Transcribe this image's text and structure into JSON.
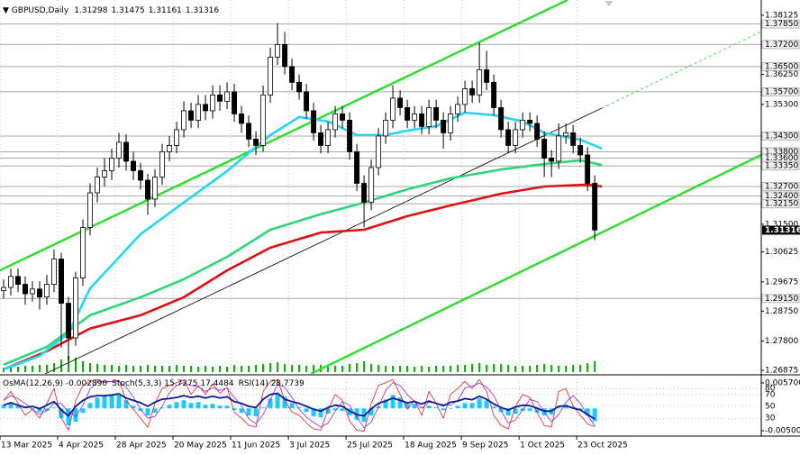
{
  "chart_data": [
    {
      "type": "candlestick",
      "title": "GBPUSD,Daily",
      "header_values": [
        1.31298,
        1.31475,
        1.31161,
        1.31316
      ],
      "up_color": "#ffffff",
      "down_color": "#000000",
      "wick_color": "#000000",
      "open": [
        1.294,
        1.295,
        1.2985,
        1.296,
        1.293,
        1.2945,
        1.292,
        1.296,
        1.304,
        1.29,
        1.279,
        1.298,
        1.314,
        1.325,
        1.33,
        1.332,
        1.336,
        1.341,
        1.335,
        1.332,
        1.329,
        1.323,
        1.33,
        1.338,
        1.34,
        1.345,
        1.351,
        1.348,
        1.353,
        1.351,
        1.356,
        1.354,
        1.357,
        1.35,
        1.347,
        1.342,
        1.34,
        1.356,
        1.368,
        1.372,
        1.365,
        1.36,
        1.357,
        1.351,
        1.344,
        1.34,
        1.345,
        1.35,
        1.348,
        1.338,
        1.328,
        1.322,
        1.333,
        1.343,
        1.348,
        1.355,
        1.352,
        1.348,
        1.35,
        1.346,
        1.352,
        1.348,
        1.344,
        1.35,
        1.353,
        1.358,
        1.356,
        1.364,
        1.36,
        1.352,
        1.345,
        1.34,
        1.345,
        1.348,
        1.347,
        1.342,
        1.336,
        1.335,
        1.343,
        1.344,
        1.34,
        1.337,
        1.328
      ],
      "high": [
        1.2975,
        1.301,
        1.301,
        1.2985,
        1.297,
        1.297,
        1.299,
        1.307,
        1.306,
        1.292,
        1.3,
        1.3165,
        1.328,
        1.333,
        1.336,
        1.339,
        1.344,
        1.3435,
        1.338,
        1.3345,
        1.331,
        1.3325,
        1.3405,
        1.343,
        1.3475,
        1.354,
        1.3535,
        1.356,
        1.356,
        1.359,
        1.359,
        1.36,
        1.3595,
        1.3525,
        1.3495,
        1.3445,
        1.359,
        1.371,
        1.3788,
        1.376,
        1.3675,
        1.3625,
        1.3595,
        1.3535,
        1.3465,
        1.3475,
        1.3525,
        1.3525,
        1.3505,
        1.3405,
        1.3305,
        1.3355,
        1.3455,
        1.3505,
        1.359,
        1.3575,
        1.3545,
        1.3525,
        1.3525,
        1.3545,
        1.3545,
        1.3505,
        1.3525,
        1.3555,
        1.3605,
        1.3605,
        1.3726,
        1.37,
        1.3625,
        1.3545,
        1.3475,
        1.3475,
        1.3505,
        1.3505,
        1.3495,
        1.3445,
        1.3385,
        1.347,
        1.347,
        1.3465,
        1.3425,
        1.3395,
        1.3305
      ],
      "low": [
        1.2915,
        1.2925,
        1.2935,
        1.2895,
        1.2905,
        1.288,
        1.2895,
        1.2935,
        1.276,
        1.272,
        1.2765,
        1.2955,
        1.3115,
        1.322,
        1.327,
        1.329,
        1.333,
        1.332,
        1.329,
        1.326,
        1.318,
        1.3205,
        1.3275,
        1.335,
        1.3375,
        1.3425,
        1.3455,
        1.3455,
        1.348,
        1.3485,
        1.351,
        1.3515,
        1.3475,
        1.344,
        1.3395,
        1.337,
        1.338,
        1.3535,
        1.3655,
        1.3625,
        1.3575,
        1.3545,
        1.3485,
        1.3415,
        1.3375,
        1.3375,
        1.3425,
        1.3455,
        1.3355,
        1.3255,
        1.314,
        1.3195,
        1.3305,
        1.3405,
        1.3455,
        1.3495,
        1.3455,
        1.3455,
        1.3435,
        1.3435,
        1.3455,
        1.339,
        1.3415,
        1.3475,
        1.3505,
        1.3535,
        1.3535,
        1.3575,
        1.3495,
        1.3425,
        1.3375,
        1.3375,
        1.3425,
        1.3445,
        1.3395,
        1.33,
        1.33,
        1.3325,
        1.3405,
        1.3375,
        1.3345,
        1.3255,
        1.31
      ],
      "close": [
        1.295,
        1.2985,
        1.296,
        1.293,
        1.2945,
        1.292,
        1.296,
        1.304,
        1.29,
        1.279,
        1.298,
        1.314,
        1.325,
        1.33,
        1.332,
        1.336,
        1.341,
        1.335,
        1.332,
        1.329,
        1.323,
        1.33,
        1.338,
        1.34,
        1.345,
        1.351,
        1.348,
        1.353,
        1.351,
        1.356,
        1.354,
        1.357,
        1.35,
        1.347,
        1.342,
        1.34,
        1.356,
        1.368,
        1.372,
        1.365,
        1.36,
        1.357,
        1.351,
        1.344,
        1.34,
        1.345,
        1.35,
        1.348,
        1.338,
        1.328,
        1.322,
        1.333,
        1.343,
        1.348,
        1.355,
        1.352,
        1.348,
        1.35,
        1.346,
        1.352,
        1.348,
        1.344,
        1.35,
        1.353,
        1.358,
        1.356,
        1.364,
        1.36,
        1.352,
        1.345,
        1.34,
        1.345,
        1.348,
        1.347,
        1.342,
        1.336,
        1.335,
        1.343,
        1.344,
        1.34,
        1.337,
        1.328,
        1.3132
      ],
      "xlim": [
        0,
        105.6
      ],
      "xticks": [
        {
          "value": 0,
          "label": "13 Mar 2025"
        },
        {
          "value": 8,
          "label": "4 Apr 2025"
        },
        {
          "value": 16,
          "label": "28 Apr 2025"
        },
        {
          "value": 24,
          "label": "20 May 2025"
        },
        {
          "value": 32,
          "label": "11 Jun 2025"
        },
        {
          "value": 40,
          "label": "3 Jul 2025"
        },
        {
          "value": 48,
          "label": "25 Jul 2025"
        },
        {
          "value": 56,
          "label": "18 Aug 2025"
        },
        {
          "value": 64,
          "label": "9 Sep 2025"
        },
        {
          "value": 72,
          "label": "1 Oct 2025"
        },
        {
          "value": 80,
          "label": "23 Oct 2025"
        }
      ],
      "grid": true,
      "ylim": [
        1.2676,
        1.3861
      ],
      "yticks": [
        1.38125,
        {
          "value": 1.3625,
          "label": "1.36250"
        },
        {
          "value": 1.353,
          "label": "1.35300"
        },
        {
          "value": 1.315,
          "label": "1.31500"
        },
        1.30625,
        1.29675,
        {
          "value": 1.2875,
          "label": "1.28750"
        },
        {
          "value": 1.278,
          "label": "1.27800"
        },
        1.26875
      ],
      "levels": [
        {
          "value": 1.3785,
          "label": "1.37850"
        },
        {
          "value": 1.372,
          "label": "1.37200"
        },
        {
          "value": 1.365,
          "label": "1.36500"
        },
        {
          "value": 1.357,
          "label": "1.35700"
        },
        {
          "value": 1.343,
          "label": "1.34300"
        },
        {
          "value": 1.338,
          "label": "1.33800"
        },
        {
          "value": 1.336,
          "label": "1.33600"
        },
        {
          "value": 1.3335,
          "label": "1.33350"
        },
        {
          "value": 1.327,
          "label": "1.32700"
        },
        {
          "value": 1.324,
          "label": "1.32400"
        },
        {
          "value": 1.3215,
          "label": "1.32150"
        },
        {
          "value": 1.2915,
          "label": "1.29150"
        }
      ],
      "level_color": "#a8a8a8",
      "last_price": 1.31316,
      "moving_averages": [
        {
          "color": "#e01010",
          "x": [
            0,
            6,
            12,
            19,
            25,
            31,
            37,
            44,
            50,
            56,
            62,
            69,
            75,
            81,
            83
          ],
          "values": [
            1.269,
            1.2748,
            1.282,
            1.2862,
            1.2919,
            1.3004,
            1.3076,
            1.3124,
            1.3133,
            1.3176,
            1.321,
            1.3247,
            1.327,
            1.3276,
            1.327
          ]
        },
        {
          "color": "#2ed67a",
          "x": [
            0,
            6,
            12,
            19,
            25,
            31,
            37,
            44,
            50,
            56,
            62,
            69,
            75,
            80,
            83
          ],
          "values": [
            1.2705,
            1.2762,
            1.2862,
            1.2919,
            1.2976,
            1.3047,
            1.3133,
            1.3182,
            1.3219,
            1.3261,
            1.3296,
            1.3324,
            1.3341,
            1.3353,
            1.3338
          ]
        },
        {
          "color": "#22d8f0",
          "x": [
            0,
            5,
            9,
            12,
            19,
            25,
            31,
            37,
            41,
            45,
            49,
            53,
            56,
            60,
            64,
            68,
            72,
            75,
            80,
            83
          ],
          "values": [
            1.269,
            1.2733,
            1.2805,
            1.2947,
            1.3119,
            1.3219,
            1.3319,
            1.3433,
            1.349,
            1.3476,
            1.3433,
            1.3433,
            1.3447,
            1.3461,
            1.3504,
            1.3496,
            1.3476,
            1.344,
            1.3418,
            1.339
          ]
        }
      ],
      "volume": {
        "color": "#00b000",
        "values": [
          5,
          6,
          6,
          7,
          7,
          8,
          8,
          10,
          14,
          18,
          16,
          12,
          10,
          9,
          8,
          8,
          7,
          8,
          7,
          7,
          8,
          7,
          7,
          7,
          8,
          7,
          7,
          6,
          7,
          6,
          7,
          6,
          8,
          7,
          7,
          8,
          9,
          10,
          11,
          9,
          8,
          8,
          7,
          8,
          8,
          7,
          7,
          7,
          9,
          10,
          12,
          9,
          8,
          7,
          7,
          7,
          7,
          6,
          7,
          6,
          7,
          7,
          7,
          8,
          8,
          9,
          10,
          8,
          9,
          9,
          8,
          7,
          7,
          7,
          8,
          9,
          8,
          7,
          7,
          8,
          8,
          10,
          12
        ]
      }
    },
    {
      "type": "oscillator",
      "legend": [
        "OsMA(12,26,9) -0.002890",
        "Stoch(5,3,3) 15.7275 17.4484",
        "RSI(14) 28.7739"
      ],
      "ylim": [
        0,
        100
      ],
      "yticks": [
        80,
        70,
        50,
        30
      ],
      "y2lim": [
        -0.0062,
        0.0071
      ],
      "y2ticks": [
        {
          "value": 0.0057,
          "label": "0.005700"
        },
        {
          "value": -0.005,
          "label": "-0.005000"
        }
      ],
      "series": [
        {
          "type": "bar",
          "axis": "y2",
          "color": "#1ec8ff",
          "values": [
            0.0008,
            0.001,
            0.0006,
            0.0002,
            -0.0002,
            -0.0008,
            -0.0006,
            0.0002,
            -0.0022,
            -0.0038,
            -0.003,
            -0.001,
            0.0012,
            0.0024,
            0.003,
            0.0032,
            0.003,
            0.0018,
            0.0006,
            -0.0006,
            -0.0016,
            -0.001,
            0.0002,
            0.0008,
            0.0014,
            0.0018,
            0.0012,
            0.0014,
            0.0008,
            0.001,
            0.0006,
            0.0006,
            -0.0004,
            -0.001,
            -0.0016,
            -0.0018,
            0.0002,
            0.0022,
            0.0034,
            0.0026,
            0.0012,
            0.0002,
            -0.0008,
            -0.0018,
            -0.002,
            -0.0012,
            -0.0004,
            -0.0006,
            -0.0016,
            -0.0026,
            -0.003,
            -0.0016,
            0.0004,
            0.002,
            0.003,
            0.0024,
            0.0014,
            0.001,
            0.0002,
            0.0006,
            0.0002,
            -0.0004,
            0.0,
            0.0006,
            0.0012,
            0.0012,
            0.0022,
            0.0018,
            0.0004,
            -0.0008,
            -0.0016,
            -0.0012,
            -0.0006,
            -0.0006,
            -0.001,
            -0.0016,
            -0.0014,
            0.0002,
            0.0008,
            0.0004,
            -0.0004,
            -0.0016,
            -0.00289
          ]
        },
        {
          "type": "line",
          "color": "#e02020",
          "width": 0.8,
          "values": [
            60,
            75,
            55,
            35,
            45,
            30,
            55,
            80,
            30,
            10,
            60,
            85,
            92,
            95,
            90,
            92,
            94,
            60,
            45,
            30,
            15,
            55,
            80,
            85,
            90,
            94,
            70,
            85,
            70,
            88,
            72,
            82,
            40,
            30,
            18,
            15,
            75,
            92,
            95,
            60,
            40,
            35,
            22,
            12,
            10,
            45,
            70,
            60,
            25,
            10,
            8,
            55,
            85,
            90,
            95,
            70,
            45,
            60,
            35,
            75,
            55,
            30,
            70,
            80,
            92,
            80,
            95,
            75,
            35,
            18,
            12,
            50,
            70,
            65,
            40,
            18,
            15,
            75,
            80,
            50,
            35,
            20,
            15.7275
          ]
        },
        {
          "type": "line",
          "color": "#8a2be2",
          "width": 0.8,
          "values": [
            60,
            68,
            63,
            55,
            45,
            37,
            43,
            55,
            55,
            40,
            33,
            52,
            79,
            91,
            92,
            92,
            92,
            82,
            66,
            45,
            30,
            33,
            50,
            73,
            85,
            90,
            85,
            83,
            75,
            81,
            77,
            81,
            65,
            51,
            29,
            21,
            36,
            61,
            87,
            82,
            65,
            45,
            32,
            23,
            15,
            22,
            42,
            58,
            52,
            32,
            14,
            24,
            49,
            77,
            90,
            85,
            70,
            58,
            47,
            57,
            55,
            53,
            52,
            60,
            81,
            84,
            89,
            83,
            68,
            43,
            22,
            27,
            44,
            62,
            58,
            41,
            24,
            36,
            57,
            68,
            55,
            35,
            17.4484
          ]
        },
        {
          "type": "line",
          "color": "#10189a",
          "width": 1.8,
          "values": [
            52,
            56,
            52,
            48,
            50,
            46,
            52,
            58,
            44,
            34,
            50,
            60,
            66,
            68,
            68,
            69,
            71,
            64,
            60,
            56,
            50,
            57,
            62,
            63,
            65,
            68,
            65,
            67,
            64,
            67,
            64,
            66,
            58,
            55,
            50,
            48,
            62,
            70,
            72,
            62,
            58,
            55,
            50,
            45,
            42,
            48,
            52,
            50,
            42,
            36,
            34,
            46,
            55,
            59,
            64,
            60,
            56,
            58,
            54,
            59,
            55,
            51,
            57,
            59,
            63,
            61,
            67,
            62,
            54,
            48,
            44,
            49,
            52,
            51,
            47,
            42,
            42,
            50,
            51,
            47,
            44,
            36,
            28.7739
          ]
        }
      ]
    }
  ]
}
